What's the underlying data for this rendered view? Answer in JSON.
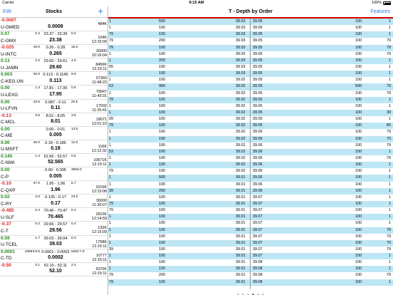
{
  "status_bar": {
    "carrier": "Carrier",
    "time": "9:15 AM",
    "battery": "100%"
  },
  "left_panel": {
    "edit_label": "Edit",
    "title": "Stocks",
    "add_label": "+"
  },
  "stocks": [
    {
      "change": "-0.0007",
      "dir": "down",
      "symbol": "U-GMED",
      "bid_size": "",
      "bid_ask": "",
      "ask_size": "",
      "last": "0.0008",
      "volume": "484K",
      "time": ""
    },
    {
      "change": "0.07",
      "dir": "up",
      "symbol": "C-GMX",
      "bid_size": "0.2",
      "bid_ask": "23.37 - 23.39",
      "ask_size": "0.2",
      "last": "23.38",
      "volume": "104K",
      "time": "12:15:09"
    },
    {
      "change": "-0.025",
      "dir": "down",
      "symbol": "U-INTC",
      "bid_size": "19.0",
      "bid_ask": "0.26 - 0.28",
      "ask_size": "15.0",
      "last": "0.265",
      "volume": "26000",
      "time": "10:16:04"
    },
    {
      "change": "0.13",
      "dir": "up",
      "symbol": "U-JAMN",
      "bid_size": "2.2",
      "bid_ask": "29.60 - 29.61",
      "ask_size": "4.6",
      "last": "29.60",
      "volume": "8456K",
      "time": "12:15:11"
    },
    {
      "change": "0.003",
      "dir": "up",
      "symbol": "C-KEG.UN",
      "bid_size": "20.0",
      "bid_ask": "0.113 - 0.1145",
      "ask_size": "9.9",
      "last": "0.113",
      "volume": "57360",
      "time": "11:48:22"
    },
    {
      "change": "0.00",
      "dir": "flat",
      "symbol": "U-LEXG",
      "bid_size": "1.3",
      "bid_ask": "17.81 - 17.95",
      "ask_size": "0.5",
      "last": "17.95",
      "volume": "79947",
      "time": "11:43:31"
    },
    {
      "change": "0.00",
      "dir": "flat",
      "symbol": "U-LFVN",
      "bid_size": "19.5",
      "bid_ask": "0.087 - 0.11",
      "ask_size": "20.5",
      "last": "0.11",
      "volume": "17032",
      "time": "11:25:41"
    },
    {
      "change": "-0.13",
      "dir": "down",
      "symbol": "C-MCL",
      "bid_size": "0.5",
      "bid_ask": "8.01 - 8.05",
      "ask_size": "3.5",
      "last": "8.01",
      "volume": "18071",
      "time": "12:01:10"
    },
    {
      "change": "0.00",
      "dir": "flat",
      "symbol": "C-ME",
      "bid_size": "",
      "bid_ask": "0.00 - 0.01",
      "ask_size": "13.0",
      "last": "0.005",
      "volume": "",
      "time": ""
    },
    {
      "change": "0.00",
      "dir": "flat",
      "symbol": "U-MSFT",
      "bid_size": "26.0",
      "bid_ask": "0.18 - 0.185",
      "ask_size": "12.0",
      "last": "0.18",
      "volume": "116K",
      "time": "12:12:32"
    },
    {
      "change": "0.145",
      "dir": "up",
      "symbol": "C-NWI",
      "bid_size": "1.4",
      "bid_ask": "52.56 - 52.57",
      "ask_size": "0.5",
      "last": "52.565",
      "volume": "10671K",
      "time": "12:15:11"
    },
    {
      "change": "0.00",
      "dir": "flat",
      "symbol": "C-P",
      "bid_size": "",
      "bid_ask": "0.00 - 0.005",
      "ask_size": "3993.0",
      "last": "0.005",
      "volume": "",
      "time": ""
    },
    {
      "change": "-0.10",
      "dir": "down",
      "symbol": "C-QXP",
      "bid_size": "37.0",
      "bid_ask": "1.95 - 1.96",
      "ask_size": "6.7",
      "last": "1.96",
      "volume": "1615K",
      "time": "12:15:08"
    },
    {
      "change": "0.02",
      "dir": "up",
      "symbol": "C-RY",
      "bid_size": "3.0",
      "bid_ask": "0.135 - 0.17",
      "ask_size": "23.0",
      "last": "0.17",
      "volume": "30000",
      "time": "11:30:07"
    },
    {
      "change": "-0.485",
      "dir": "down",
      "symbol": "U-SLF",
      "bid_size": "0.4",
      "bid_ask": "70.46 - 70.47",
      "ask_size": "0.4",
      "last": "70.465",
      "volume": "1810K",
      "time": "12:14:59"
    },
    {
      "change": "-0.37",
      "dir": "down",
      "symbol": "C-T",
      "bid_size": "0.2",
      "bid_ask": "29.56 - 29.57",
      "ask_size": "0.4",
      "last": "29.56",
      "volume": "132K",
      "time": "12:15:09"
    },
    {
      "change": "0.59",
      "dir": "up",
      "symbol": "U-TCEL",
      "bid_size": "1.7",
      "bid_ask": "39.03 - 39.04",
      "ask_size": "0.3",
      "last": "39.03",
      "volume": "1758K",
      "time": "12:15:11"
    },
    {
      "change": "0.0001",
      "dir": "up",
      "symbol": "C-TD",
      "bid_size": "10593:8.5",
      "bid_ask": "0.0001 - 0.0002",
      "ask_size": "5362:7.9",
      "last": "0.0002",
      "volume": "10777",
      "time": "12:15:11"
    },
    {
      "change": "-0.50",
      "dir": "down",
      "symbol": "",
      "bid_size": "0.1",
      "bid_ask": "52.10 - 52.11",
      "ask_size": "2.4",
      "last": "52.10",
      "volume": "2070K",
      "time": "12:15:11"
    }
  ],
  "depth_panel": {
    "title": "T  -  Depth by Order",
    "features_label": "Features"
  },
  "depth_rows": [
    [
      "1",
      "500",
      "39.03",
      "39.05",
      "100",
      "1"
    ],
    [
      "1",
      "100",
      "39.03",
      "39.05",
      "100",
      "1"
    ],
    [
      "79",
      "100",
      "39.03",
      "39.05",
      "100",
      "1"
    ],
    [
      "79",
      "200",
      "39.03",
      "39.05",
      "100",
      "79"
    ],
    [
      "79",
      "100",
      "39.03",
      "39.05",
      "100",
      "79"
    ],
    [
      "1",
      "100",
      "39.03",
      "39.05",
      "100",
      "79"
    ],
    [
      "1",
      "200",
      "39.03",
      "39.05",
      "100",
      "1"
    ],
    [
      "65",
      "100",
      "39.03",
      "39.05",
      "100",
      "1"
    ],
    [
      "1",
      "100",
      "39.03",
      "39.05",
      "100",
      "1"
    ],
    [
      "1",
      "100",
      "39.02",
      "39.05",
      "100",
      "1"
    ],
    [
      "53",
      "900",
      "39.02",
      "39.05",
      "500",
      "79"
    ],
    [
      "1",
      "100",
      "39.02",
      "39.05",
      "100",
      "79"
    ],
    [
      "79",
      "100",
      "39.02",
      "39.05",
      "100",
      "1"
    ],
    [
      "1",
      "100",
      "39.02",
      "39.05",
      "100",
      "1"
    ],
    [
      "1",
      "100",
      "39.02",
      "39.05",
      "100",
      "39"
    ],
    [
      "39",
      "100",
      "39.02",
      "39.05",
      "100",
      "1"
    ],
    [
      "79",
      "100",
      "39.02",
      "39.05",
      "100",
      "80"
    ],
    [
      "1",
      "100",
      "39.02",
      "39.06",
      "100",
      "79"
    ],
    [
      "1",
      "100",
      "39.02",
      "39.06",
      "100",
      "79"
    ],
    [
      "1",
      "100",
      "39.02",
      "39.06",
      "100",
      "79"
    ],
    [
      "53",
      "100",
      "39.02",
      "39.06",
      "100",
      "1"
    ],
    [
      "1",
      "100",
      "39.02",
      "39.06",
      "100",
      "79"
    ],
    [
      "1",
      "100",
      "39.02",
      "39.06",
      "100",
      "1"
    ],
    [
      "79",
      "100",
      "39.02",
      "39.06",
      "100",
      "1"
    ],
    [
      "1",
      "500",
      "39.01",
      "39.06",
      "100",
      "1"
    ],
    [
      "1",
      "100",
      "39.01",
      "39.06",
      "100",
      "1"
    ],
    [
      "39",
      "200",
      "39.01",
      "39.06",
      "100",
      "1"
    ],
    [
      "1",
      "100",
      "39.01",
      "39.07",
      "100",
      "1"
    ],
    [
      "79",
      "100",
      "39.01",
      "39.07",
      "100",
      "1"
    ],
    [
      "79",
      "100",
      "39.01",
      "39.07",
      "100",
      "1"
    ],
    [
      "1",
      "100",
      "39.01",
      "39.07",
      "100",
      "1"
    ],
    [
      "1",
      "100",
      "39.01",
      "39.07",
      "100",
      "1"
    ],
    [
      "1",
      "100",
      "39.01",
      "39.07",
      "100",
      "79"
    ],
    [
      "1",
      "100",
      "39.01",
      "39.07",
      "100",
      "79"
    ],
    [
      "1",
      "100",
      "39.01",
      "39.07",
      "100",
      "79"
    ],
    [
      "39",
      "100",
      "39.01",
      "39.07",
      "100",
      "79"
    ],
    [
      "1",
      "100",
      "39.01",
      "39.07",
      "100",
      "1"
    ],
    [
      "1",
      "100",
      "39.01",
      "39.08",
      "100",
      "1"
    ],
    [
      "1",
      "100",
      "39.01",
      "39.08",
      "100",
      "1"
    ],
    [
      "79",
      "200",
      "39.01",
      "39.08",
      "100",
      "79"
    ],
    [
      "79",
      "100",
      "39.01",
      "39.08",
      "100",
      "1"
    ]
  ],
  "pager": {
    "pages": 6,
    "active": 3
  }
}
